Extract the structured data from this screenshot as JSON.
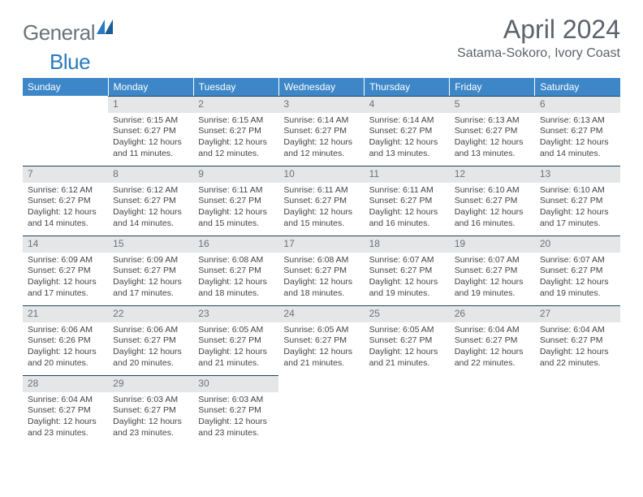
{
  "logo": {
    "general": "General",
    "blue": "Blue"
  },
  "title": "April 2024",
  "subtitle": "Satama-Sokoro, Ivory Coast",
  "colors": {
    "header_bg": "#3d87c9",
    "header_text": "#ffffff",
    "daynum_bg": "#e4e6e8",
    "daynum_text": "#6a747c",
    "daynum_border": "#21465f",
    "body_text": "#444444",
    "title_text": "#5b636b",
    "logo_general": "#6a747c",
    "logo_blue": "#2a7abf"
  },
  "typography": {
    "title_fontsize": 32,
    "subtitle_fontsize": 16,
    "header_fontsize": 12,
    "daynum_fontsize": 12,
    "cell_fontsize": 10.5
  },
  "weekdays": [
    "Sunday",
    "Monday",
    "Tuesday",
    "Wednesday",
    "Thursday",
    "Friday",
    "Saturday"
  ],
  "weeks": [
    [
      {
        "n": "",
        "sr": "",
        "ss": "",
        "dl": ""
      },
      {
        "n": "1",
        "sr": "Sunrise: 6:15 AM",
        "ss": "Sunset: 6:27 PM",
        "dl": "Daylight: 12 hours and 11 minutes."
      },
      {
        "n": "2",
        "sr": "Sunrise: 6:15 AM",
        "ss": "Sunset: 6:27 PM",
        "dl": "Daylight: 12 hours and 12 minutes."
      },
      {
        "n": "3",
        "sr": "Sunrise: 6:14 AM",
        "ss": "Sunset: 6:27 PM",
        "dl": "Daylight: 12 hours and 12 minutes."
      },
      {
        "n": "4",
        "sr": "Sunrise: 6:14 AM",
        "ss": "Sunset: 6:27 PM",
        "dl": "Daylight: 12 hours and 13 minutes."
      },
      {
        "n": "5",
        "sr": "Sunrise: 6:13 AM",
        "ss": "Sunset: 6:27 PM",
        "dl": "Daylight: 12 hours and 13 minutes."
      },
      {
        "n": "6",
        "sr": "Sunrise: 6:13 AM",
        "ss": "Sunset: 6:27 PM",
        "dl": "Daylight: 12 hours and 14 minutes."
      }
    ],
    [
      {
        "n": "7",
        "sr": "Sunrise: 6:12 AM",
        "ss": "Sunset: 6:27 PM",
        "dl": "Daylight: 12 hours and 14 minutes."
      },
      {
        "n": "8",
        "sr": "Sunrise: 6:12 AM",
        "ss": "Sunset: 6:27 PM",
        "dl": "Daylight: 12 hours and 14 minutes."
      },
      {
        "n": "9",
        "sr": "Sunrise: 6:11 AM",
        "ss": "Sunset: 6:27 PM",
        "dl": "Daylight: 12 hours and 15 minutes."
      },
      {
        "n": "10",
        "sr": "Sunrise: 6:11 AM",
        "ss": "Sunset: 6:27 PM",
        "dl": "Daylight: 12 hours and 15 minutes."
      },
      {
        "n": "11",
        "sr": "Sunrise: 6:11 AM",
        "ss": "Sunset: 6:27 PM",
        "dl": "Daylight: 12 hours and 16 minutes."
      },
      {
        "n": "12",
        "sr": "Sunrise: 6:10 AM",
        "ss": "Sunset: 6:27 PM",
        "dl": "Daylight: 12 hours and 16 minutes."
      },
      {
        "n": "13",
        "sr": "Sunrise: 6:10 AM",
        "ss": "Sunset: 6:27 PM",
        "dl": "Daylight: 12 hours and 17 minutes."
      }
    ],
    [
      {
        "n": "14",
        "sr": "Sunrise: 6:09 AM",
        "ss": "Sunset: 6:27 PM",
        "dl": "Daylight: 12 hours and 17 minutes."
      },
      {
        "n": "15",
        "sr": "Sunrise: 6:09 AM",
        "ss": "Sunset: 6:27 PM",
        "dl": "Daylight: 12 hours and 17 minutes."
      },
      {
        "n": "16",
        "sr": "Sunrise: 6:08 AM",
        "ss": "Sunset: 6:27 PM",
        "dl": "Daylight: 12 hours and 18 minutes."
      },
      {
        "n": "17",
        "sr": "Sunrise: 6:08 AM",
        "ss": "Sunset: 6:27 PM",
        "dl": "Daylight: 12 hours and 18 minutes."
      },
      {
        "n": "18",
        "sr": "Sunrise: 6:07 AM",
        "ss": "Sunset: 6:27 PM",
        "dl": "Daylight: 12 hours and 19 minutes."
      },
      {
        "n": "19",
        "sr": "Sunrise: 6:07 AM",
        "ss": "Sunset: 6:27 PM",
        "dl": "Daylight: 12 hours and 19 minutes."
      },
      {
        "n": "20",
        "sr": "Sunrise: 6:07 AM",
        "ss": "Sunset: 6:27 PM",
        "dl": "Daylight: 12 hours and 19 minutes."
      }
    ],
    [
      {
        "n": "21",
        "sr": "Sunrise: 6:06 AM",
        "ss": "Sunset: 6:26 PM",
        "dl": "Daylight: 12 hours and 20 minutes."
      },
      {
        "n": "22",
        "sr": "Sunrise: 6:06 AM",
        "ss": "Sunset: 6:27 PM",
        "dl": "Daylight: 12 hours and 20 minutes."
      },
      {
        "n": "23",
        "sr": "Sunrise: 6:05 AM",
        "ss": "Sunset: 6:27 PM",
        "dl": "Daylight: 12 hours and 21 minutes."
      },
      {
        "n": "24",
        "sr": "Sunrise: 6:05 AM",
        "ss": "Sunset: 6:27 PM",
        "dl": "Daylight: 12 hours and 21 minutes."
      },
      {
        "n": "25",
        "sr": "Sunrise: 6:05 AM",
        "ss": "Sunset: 6:27 PM",
        "dl": "Daylight: 12 hours and 21 minutes."
      },
      {
        "n": "26",
        "sr": "Sunrise: 6:04 AM",
        "ss": "Sunset: 6:27 PM",
        "dl": "Daylight: 12 hours and 22 minutes."
      },
      {
        "n": "27",
        "sr": "Sunrise: 6:04 AM",
        "ss": "Sunset: 6:27 PM",
        "dl": "Daylight: 12 hours and 22 minutes."
      }
    ],
    [
      {
        "n": "28",
        "sr": "Sunrise: 6:04 AM",
        "ss": "Sunset: 6:27 PM",
        "dl": "Daylight: 12 hours and 23 minutes."
      },
      {
        "n": "29",
        "sr": "Sunrise: 6:03 AM",
        "ss": "Sunset: 6:27 PM",
        "dl": "Daylight: 12 hours and 23 minutes."
      },
      {
        "n": "30",
        "sr": "Sunrise: 6:03 AM",
        "ss": "Sunset: 6:27 PM",
        "dl": "Daylight: 12 hours and 23 minutes."
      },
      {
        "n": "",
        "sr": "",
        "ss": "",
        "dl": ""
      },
      {
        "n": "",
        "sr": "",
        "ss": "",
        "dl": ""
      },
      {
        "n": "",
        "sr": "",
        "ss": "",
        "dl": ""
      },
      {
        "n": "",
        "sr": "",
        "ss": "",
        "dl": ""
      }
    ]
  ]
}
